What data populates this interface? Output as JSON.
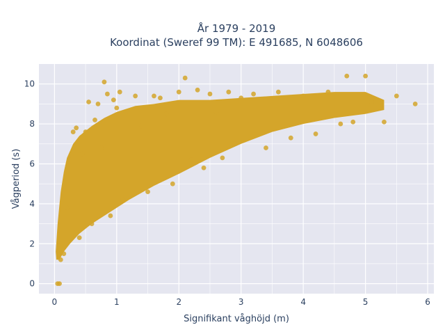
{
  "chart_data": {
    "type": "scatter",
    "title_lines": [
      "År 1979 - 2019",
      "Koordinat (Sweref 99 TM): E 491685, N 6048606"
    ],
    "xlabel": "Signifikant våghöjd (m)",
    "ylabel": "Vågperiod (s)",
    "xlim": [
      -0.25,
      6.1
    ],
    "ylim": [
      -0.5,
      11.0
    ],
    "x_ticks": [
      0,
      1,
      2,
      3,
      4,
      5,
      6
    ],
    "y_ticks": [
      0,
      2,
      4,
      6,
      8,
      10
    ],
    "grid": true,
    "legend": "none",
    "marker_color": "#d4a52a",
    "plot_background": "#e5e6f0",
    "series": [
      {
        "points": [
          [
            0.05,
            0.0
          ],
          [
            0.08,
            0.0
          ],
          [
            0.1,
            1.2
          ],
          [
            0.15,
            1.5
          ],
          [
            0.2,
            3.8
          ],
          [
            0.25,
            6.2
          ],
          [
            0.3,
            7.6
          ],
          [
            0.35,
            7.8
          ],
          [
            0.4,
            2.3
          ],
          [
            0.45,
            6.5
          ],
          [
            0.5,
            7.6
          ],
          [
            0.55,
            9.1
          ],
          [
            0.6,
            3.0
          ],
          [
            0.65,
            8.2
          ],
          [
            0.7,
            9.0
          ],
          [
            0.75,
            6.8
          ],
          [
            0.8,
            10.1
          ],
          [
            0.85,
            9.5
          ],
          [
            0.9,
            3.4
          ],
          [
            0.95,
            9.2
          ],
          [
            1.0,
            8.8
          ],
          [
            1.05,
            9.6
          ],
          [
            1.1,
            4.2
          ],
          [
            1.2,
            8.6
          ],
          [
            1.3,
            9.4
          ],
          [
            1.4,
            7.9
          ],
          [
            1.5,
            4.6
          ],
          [
            1.6,
            9.4
          ],
          [
            1.7,
            9.3
          ],
          [
            1.8,
            8.5
          ],
          [
            1.9,
            5.0
          ],
          [
            2.0,
            9.6
          ],
          [
            2.1,
            10.3
          ],
          [
            2.2,
            6.2
          ],
          [
            2.3,
            9.7
          ],
          [
            2.4,
            5.8
          ],
          [
            2.5,
            9.5
          ],
          [
            2.6,
            8.6
          ],
          [
            2.7,
            6.3
          ],
          [
            2.8,
            9.6
          ],
          [
            2.9,
            7.0
          ],
          [
            3.0,
            9.3
          ],
          [
            3.2,
            9.5
          ],
          [
            3.4,
            6.8
          ],
          [
            3.6,
            9.6
          ],
          [
            3.8,
            7.3
          ],
          [
            4.0,
            9.4
          ],
          [
            4.2,
            7.5
          ],
          [
            4.4,
            9.6
          ],
          [
            4.6,
            8.0
          ],
          [
            4.7,
            10.4
          ],
          [
            4.8,
            8.1
          ],
          [
            5.0,
            10.4
          ],
          [
            5.1,
            9.1
          ],
          [
            5.3,
            8.1
          ],
          [
            5.5,
            9.4
          ],
          [
            5.8,
            9.0
          ]
        ]
      }
    ]
  }
}
